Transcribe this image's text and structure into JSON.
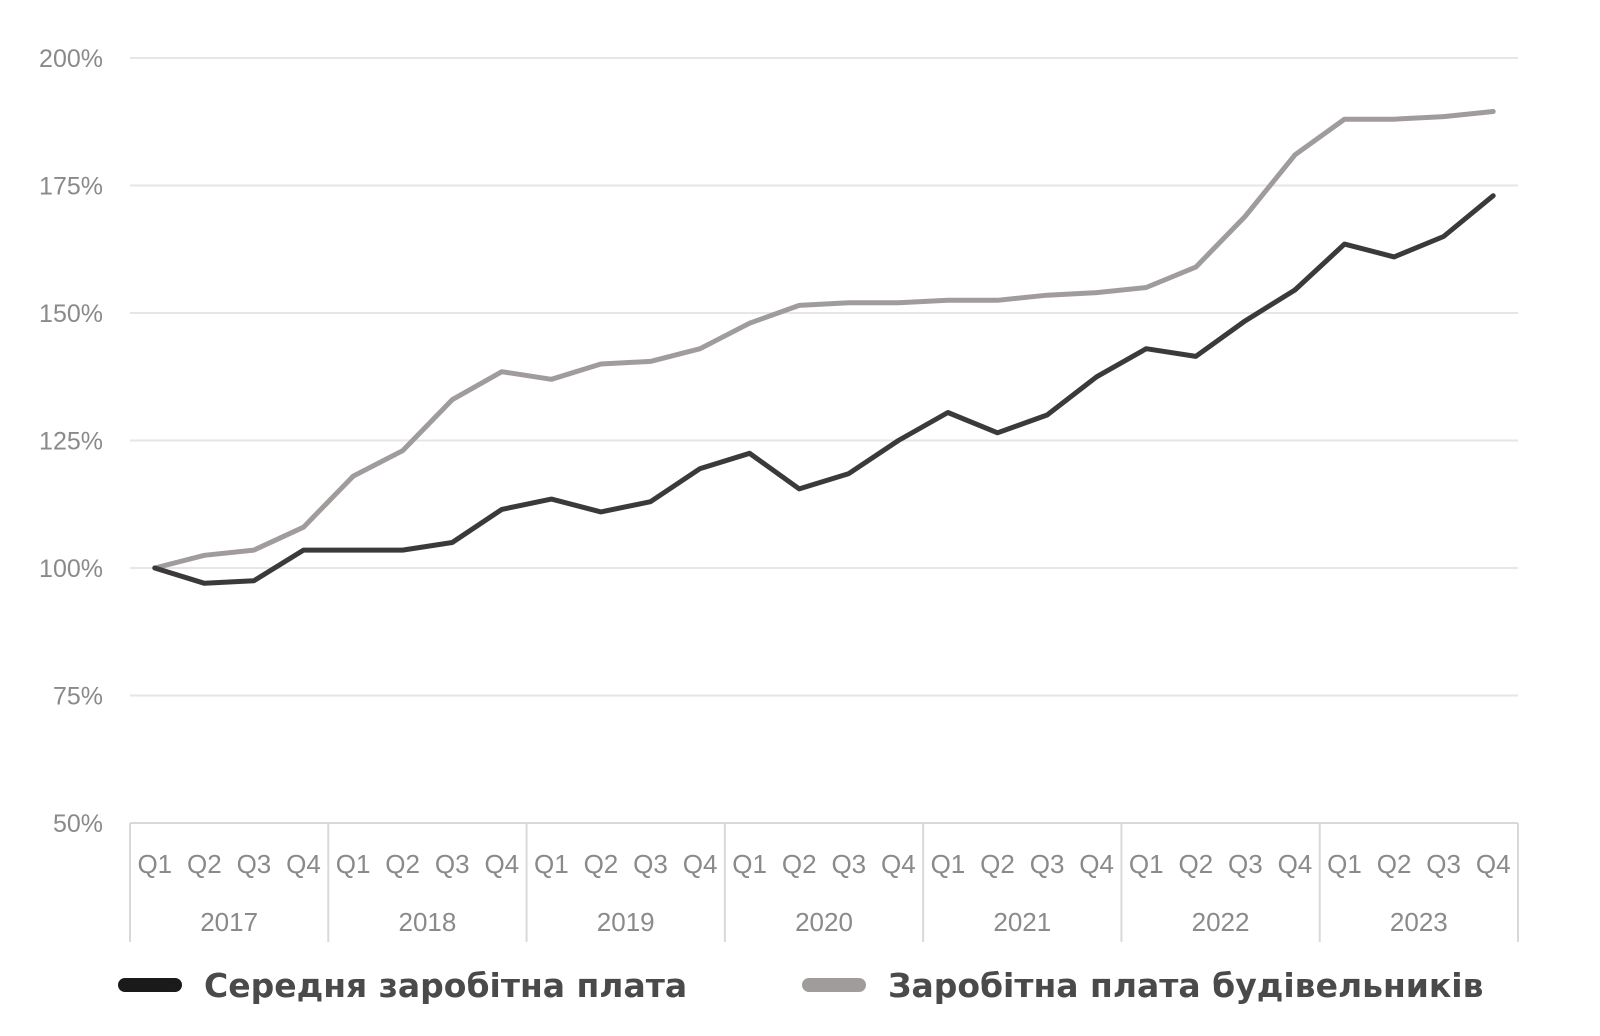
{
  "chart_data": {
    "type": "line",
    "title": "",
    "xlabel": "",
    "ylabel": "",
    "ylim": [
      50,
      200
    ],
    "y_ticks": [
      "50%",
      "75%",
      "100%",
      "125%",
      "150%",
      "175%",
      "200%"
    ],
    "y_tick_values": [
      50,
      75,
      100,
      125,
      150,
      175,
      200
    ],
    "grid": true,
    "legend_position": "bottom",
    "years": [
      "2017",
      "2018",
      "2019",
      "2020",
      "2021",
      "2022",
      "2023"
    ],
    "quarters": [
      "Q1",
      "Q2",
      "Q3",
      "Q4"
    ],
    "x": [
      "2017 Q1",
      "2017 Q2",
      "2017 Q3",
      "2017 Q4",
      "2018 Q1",
      "2018 Q2",
      "2018 Q3",
      "2018 Q4",
      "2019 Q1",
      "2019 Q2",
      "2019 Q3",
      "2019 Q4",
      "2020 Q1",
      "2020 Q2",
      "2020 Q3",
      "2020 Q4",
      "2021 Q1",
      "2021 Q2",
      "2021 Q3",
      "2021 Q4",
      "2022 Q1",
      "2022 Q2",
      "2022 Q3",
      "2022 Q4",
      "2023 Q1",
      "2023 Q2",
      "2023 Q3",
      "2023 Q4"
    ],
    "series": [
      {
        "name": "Середня заробітна плата",
        "color": "#3a3a3a",
        "values": [
          100,
          97,
          97.5,
          103.5,
          103.5,
          103.5,
          105,
          111.5,
          113.5,
          111,
          113,
          119.5,
          122.5,
          115.5,
          118.5,
          125,
          130.5,
          126.5,
          130,
          137.5,
          143,
          141.5,
          148.5,
          154.5,
          163.5,
          161,
          165,
          173
        ]
      },
      {
        "name": "Заробітна плата будівельників",
        "color": "#a09c9c",
        "values": [
          100,
          102.5,
          103.5,
          108,
          118,
          123,
          133,
          138.5,
          137,
          140,
          140.5,
          143,
          148,
          151.5,
          152,
          152,
          152.5,
          152.5,
          153.5,
          154,
          155,
          159,
          169,
          181,
          188,
          188,
          188.5,
          189.5
        ]
      }
    ]
  }
}
